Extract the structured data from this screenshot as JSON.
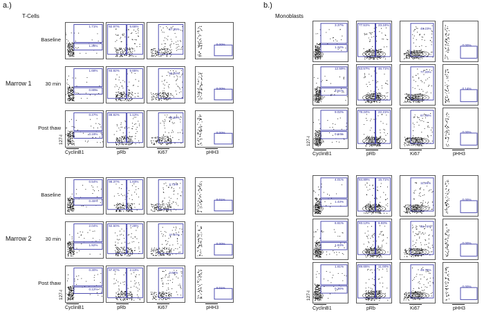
{
  "panel_a": {
    "letter": "a.)",
    "title": "T-Cells",
    "y_axis_label": "127-I",
    "x_labels": [
      "CyclinB1",
      "pRb",
      "Ki67",
      "pHH3"
    ],
    "groups": [
      {
        "name": "Marrow 1",
        "rows": [
          {
            "label": "Baseline",
            "cells": [
              [
                "1.71%",
                "1.28%"
              ],
              [
                "92.97%",
                "6.66%"
              ],
              [
                "27.95%"
              ],
              [
                "0.00%"
              ]
            ]
          },
          {
            "label": "30 min",
            "cells": [
              [
                "1.68%",
                "0.88%"
              ],
              [
                "93.92%",
                "5.65%"
              ],
              [
                "50.00%"
              ],
              [
                "0.00%"
              ]
            ]
          },
          {
            "label": "Post thaw",
            "cells": [
              [
                "0.47%",
                "0.19%"
              ],
              [
                "88.92%",
                "1.12%"
              ],
              [
                "48.88%"
              ],
              [
                "0.00%"
              ]
            ]
          }
        ]
      },
      {
        "name": "Marrow 2",
        "rows": [
          {
            "label": "Baseline",
            "cells": [
              [
                "0.54%",
                "0.45%"
              ],
              [
                "98.37%",
                "1.63%"
              ],
              [
                "2.73%"
              ],
              [
                "0.01%"
              ]
            ]
          },
          {
            "label": "30 min",
            "cells": [
              [
                "2.04%",
                "1.92%"
              ],
              [
                "92.50%",
                "7.28%"
              ],
              [
                "",
                "37.97%"
              ],
              [
                "0.00%"
              ]
            ]
          },
          {
            "label": "Post thaw",
            "cells": [
              [
                "0.30%",
                "0.12%"
              ],
              [
                "97.87%",
                "2.13%"
              ],
              [
                "3.66%"
              ],
              [
                "0.01%"
              ]
            ]
          }
        ]
      }
    ]
  },
  "panel_b": {
    "letter": "b.)",
    "title": "Monoblasts",
    "y_axis_label": "127-I",
    "x_labels": [
      "CyclinB1",
      "pRb",
      "Ki67",
      "pHH3"
    ],
    "groups": [
      {
        "rows": [
          {
            "cells": [
              [
                "3.37%",
                "1.22%"
              ],
              [
                "77.51%",
                "23.24%"
              ],
              [
                "48.23%"
              ],
              [
                "0.00%"
              ]
            ]
          },
          {
            "cells": [
              [
                "12.59%",
                "3.51%"
              ],
              [
                "53.57%",
                "46.71%"
              ],
              [
                "77.20%"
              ],
              [
                "0.14%"
              ]
            ]
          },
          {
            "cells": [
              [
                "9.02%",
                "0.94%"
              ],
              [
                "78.24%",
                "22.21%"
              ],
              [
                "67.28%"
              ],
              [
                "0.00%"
              ]
            ]
          }
        ]
      },
      {
        "rows": [
          {
            "cells": [
              [
                "4.01%",
                "1.43%"
              ],
              [
                "84.89%",
                "15.71%"
              ],
              [
                "11.86%"
              ],
              [
                "0.00%"
              ]
            ]
          },
          {
            "cells": [
              [
                "6.61%",
                "1.63%"
              ],
              [
                "93.12%",
                "6.93%"
              ],
              [
                "69.74%"
              ],
              [
                "0.00%"
              ]
            ]
          },
          {
            "cells": [
              [
                "1.61%",
                "0.36%"
              ],
              [
                "89.65%",
                "11.00%"
              ],
              [
                "49.76%"
              ],
              [
                "0.00%"
              ]
            ]
          }
        ]
      }
    ]
  }
}
